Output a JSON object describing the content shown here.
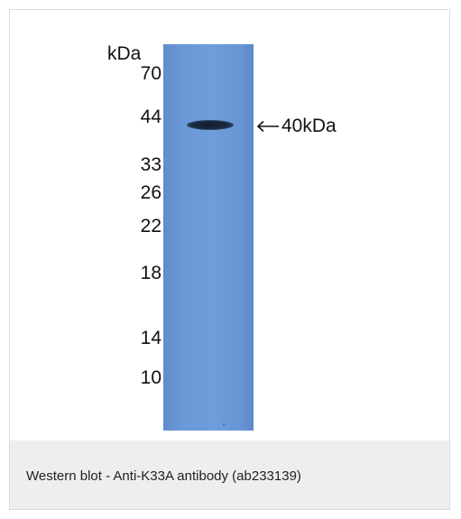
{
  "figure": {
    "unit_label": "kDa",
    "markers": [
      "70",
      "44",
      "33",
      "26",
      "22",
      "18",
      "14",
      "10"
    ],
    "band_label": "40kDa",
    "arrow_icon": "left-arrow-icon"
  },
  "caption": "Western blot - Anti-K33A antibody (ab233139)",
  "colors": {
    "membrane": "#6f9cdb",
    "band": "#1a2a40",
    "caption_background": "#eeeeee"
  }
}
